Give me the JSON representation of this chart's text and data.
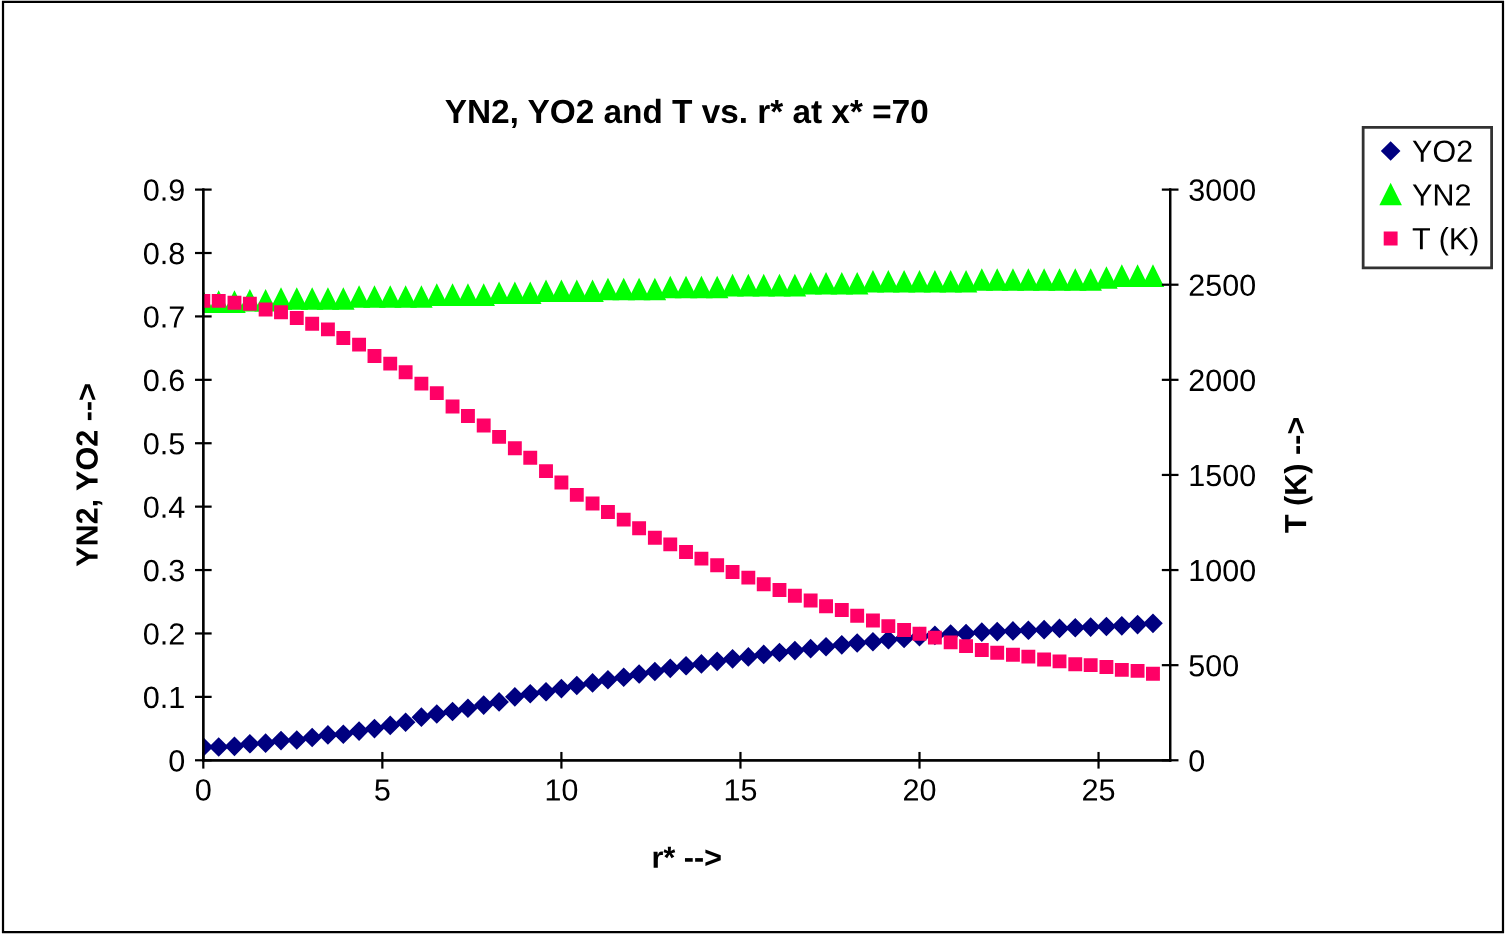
{
  "chart_data": {
    "type": "scatter",
    "title": "YN2, YO2 and T vs. r* at x* =70",
    "xlabel": "r* -->",
    "ylabel": "YN2, YO2 -->",
    "y2label": "T (K) -->",
    "x": [
      0,
      0.43,
      0.87,
      1.3,
      1.74,
      2.17,
      2.61,
      3.04,
      3.48,
      3.91,
      4.35,
      4.78,
      5.22,
      5.65,
      6.09,
      6.52,
      6.96,
      7.39,
      7.83,
      8.26,
      8.7,
      9.13,
      9.57,
      10,
      10.43,
      10.87,
      11.3,
      11.74,
      12.17,
      12.61,
      13.04,
      13.48,
      13.91,
      14.35,
      14.78,
      15.22,
      15.65,
      16.09,
      16.52,
      16.96,
      17.39,
      17.83,
      18.26,
      18.7,
      19.13,
      19.57,
      20,
      20.43,
      20.87,
      21.3,
      21.74,
      22.17,
      22.61,
      23.04,
      23.48,
      23.91,
      24.35,
      24.78,
      25.22,
      25.65,
      26.09,
      26.52
    ],
    "series": [
      {
        "name": "YO2",
        "color": "#000080",
        "marker": "diamond",
        "values": [
          0.021,
          0.021,
          0.022,
          0.026,
          0.027,
          0.031,
          0.032,
          0.036,
          0.04,
          0.041,
          0.046,
          0.05,
          0.055,
          0.06,
          0.068,
          0.073,
          0.077,
          0.082,
          0.087,
          0.092,
          0.1,
          0.105,
          0.108,
          0.113,
          0.118,
          0.122,
          0.127,
          0.131,
          0.136,
          0.14,
          0.145,
          0.149,
          0.152,
          0.156,
          0.16,
          0.163,
          0.167,
          0.17,
          0.173,
          0.176,
          0.179,
          0.182,
          0.185,
          0.187,
          0.19,
          0.192,
          0.195,
          0.197,
          0.199,
          0.2,
          0.202,
          0.203,
          0.204,
          0.205,
          0.206,
          0.208,
          0.209,
          0.21,
          0.211,
          0.212,
          0.214,
          0.216
        ]
      },
      {
        "name": "YN2",
        "color": "#00ff00",
        "marker": "triangle",
        "values": [
          0.722,
          0.722,
          0.722,
          0.724,
          0.724,
          0.727,
          0.727,
          0.727,
          0.727,
          0.727,
          0.73,
          0.73,
          0.73,
          0.73,
          0.73,
          0.733,
          0.733,
          0.733,
          0.733,
          0.736,
          0.736,
          0.736,
          0.739,
          0.739,
          0.739,
          0.739,
          0.742,
          0.742,
          0.742,
          0.742,
          0.745,
          0.745,
          0.745,
          0.745,
          0.748,
          0.748,
          0.748,
          0.748,
          0.748,
          0.751,
          0.751,
          0.751,
          0.751,
          0.754,
          0.754,
          0.754,
          0.754,
          0.754,
          0.754,
          0.754,
          0.757,
          0.757,
          0.757,
          0.757,
          0.757,
          0.757,
          0.757,
          0.757,
          0.76,
          0.763,
          0.763,
          0.763
        ]
      },
      {
        "name": "T (K)",
        "color": "#ff0066",
        "marker": "square",
        "axis": "y2",
        "values": [
          2415,
          2415,
          2405,
          2400,
          2370,
          2355,
          2325,
          2295,
          2265,
          2220,
          2185,
          2125,
          2085,
          2040,
          1980,
          1930,
          1860,
          1810,
          1760,
          1700,
          1640,
          1590,
          1520,
          1460,
          1395,
          1350,
          1305,
          1265,
          1220,
          1170,
          1135,
          1095,
          1060,
          1025,
          990,
          960,
          925,
          895,
          865,
          840,
          810,
          790,
          760,
          735,
          705,
          685,
          665,
          645,
          620,
          600,
          580,
          565,
          555,
          545,
          530,
          520,
          505,
          500,
          490,
          475,
          470,
          455
        ]
      }
    ],
    "xlim": [
      0,
      27
    ],
    "xticks": [
      0,
      5,
      10,
      15,
      20,
      25
    ],
    "ylim": [
      0,
      0.9
    ],
    "yticks": [
      0,
      0.1,
      0.2,
      0.3,
      0.4,
      0.5,
      0.6,
      0.7,
      0.8,
      0.9
    ],
    "y2lim": [
      0,
      3000
    ],
    "y2ticks": [
      0,
      500,
      1000,
      1500,
      2000,
      2500,
      3000
    ],
    "grid": false,
    "legend": "right"
  }
}
